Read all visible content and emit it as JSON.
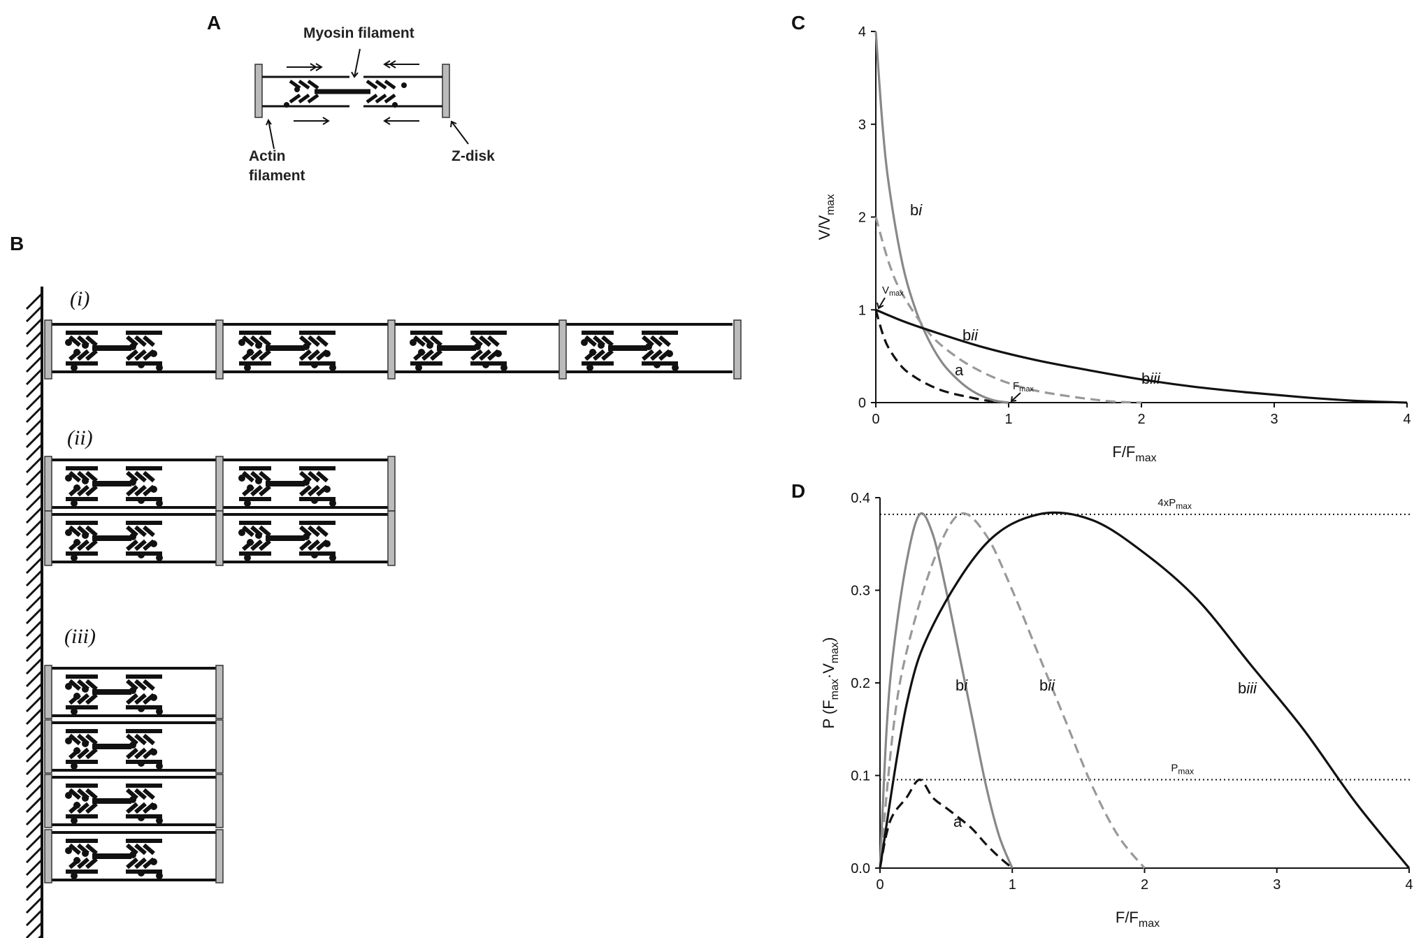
{
  "panels": {
    "A": {
      "letter": "A",
      "myosin_label": "Myosin filament",
      "actin_label_line1": "Actin",
      "actin_label_line2": "filament",
      "zdisk_label": "Z-disk"
    },
    "B": {
      "letter": "B",
      "row_labels": [
        "(i)",
        "(ii)",
        "(iii)"
      ]
    }
  },
  "chart_data": [
    {
      "panel": "C",
      "type": "line",
      "xlabel": "F/F",
      "xlabel_sub": "max",
      "ylabel": "V/V",
      "ylabel_sub": "max",
      "xlim": [
        0,
        4
      ],
      "ylim": [
        0,
        4
      ],
      "xticks": [
        "0",
        "1",
        "2",
        "3",
        "4"
      ],
      "yticks": [
        "0",
        "1",
        "2",
        "3",
        "4"
      ],
      "series": [
        {
          "name": "a",
          "label_main": "a",
          "label_italic": "",
          "color": "#111111",
          "dashed": true,
          "x": [
            0,
            0.05,
            0.1,
            0.2,
            0.3,
            0.4,
            0.5,
            0.6,
            0.7,
            0.8,
            0.9,
            1.0
          ],
          "y": [
            1.0,
            0.75,
            0.58,
            0.38,
            0.27,
            0.19,
            0.13,
            0.09,
            0.06,
            0.03,
            0.01,
            0
          ]
        },
        {
          "name": "bi",
          "label_main": "b",
          "label_italic": "i",
          "color": "#888888",
          "dashed": false,
          "x": [
            0,
            0.05,
            0.1,
            0.2,
            0.3,
            0.4,
            0.5,
            0.6,
            0.7,
            0.8,
            0.9,
            1.0
          ],
          "y": [
            4.0,
            3.0,
            2.33,
            1.5,
            1.0,
            0.67,
            0.43,
            0.27,
            0.15,
            0.07,
            0.02,
            0
          ]
        },
        {
          "name": "bii",
          "label_main": "b",
          "label_italic": "ii",
          "color": "#999999",
          "dashed": true,
          "x": [
            0,
            0.1,
            0.2,
            0.4,
            0.6,
            0.8,
            1.0,
            1.2,
            1.4,
            1.6,
            1.8,
            2.0
          ],
          "y": [
            2.0,
            1.5,
            1.17,
            0.75,
            0.5,
            0.33,
            0.21,
            0.13,
            0.08,
            0.04,
            0.01,
            0
          ]
        },
        {
          "name": "biii",
          "label_main": "b",
          "label_italic": "iii",
          "color": "#111111",
          "dashed": false,
          "x": [
            0,
            0.2,
            0.4,
            0.8,
            1.2,
            1.6,
            2.0,
            2.4,
            2.8,
            3.2,
            3.6,
            4.0
          ],
          "y": [
            1.0,
            0.88,
            0.78,
            0.6,
            0.46,
            0.35,
            0.25,
            0.17,
            0.11,
            0.06,
            0.02,
            0
          ]
        }
      ],
      "annotations": [
        {
          "text": "V",
          "sub": "max",
          "x": 0,
          "y": 1
        },
        {
          "text": "F",
          "sub": "max",
          "x": 1,
          "y": 0
        }
      ]
    },
    {
      "panel": "D",
      "type": "line",
      "xlabel": "F/F",
      "xlabel_sub": "max",
      "ylabel": "P (F",
      "ylabel_sub1": "max",
      "ylabel_mid": "·V",
      "ylabel_sub2": "max",
      "ylabel_end": ")",
      "xlim": [
        0,
        4
      ],
      "ylim": [
        0,
        0.4
      ],
      "xticks": [
        "0",
        "1",
        "2",
        "3",
        "4"
      ],
      "yticks": [
        "0.0",
        "0.1",
        "0.2",
        "0.3",
        "0.4"
      ],
      "series": [
        {
          "name": "a",
          "label_main": "a",
          "label_italic": "",
          "color": "#111111",
          "dashed": true,
          "x": [
            0,
            0.05,
            0.1,
            0.2,
            0.3,
            0.4,
            0.5,
            0.6,
            0.7,
            0.8,
            0.9,
            1.0
          ],
          "y": [
            0,
            0.0375,
            0.058,
            0.076,
            0.0955,
            0.076,
            0.065,
            0.054,
            0.042,
            0.026,
            0.012,
            0
          ]
        },
        {
          "name": "bi",
          "label_main": "b",
          "label_italic": "i",
          "color": "#888888",
          "dashed": false,
          "x": [
            0,
            0.05,
            0.1,
            0.2,
            0.3,
            0.4,
            0.5,
            0.6,
            0.7,
            0.8,
            0.9,
            1.0
          ],
          "y": [
            0,
            0.15,
            0.233,
            0.33,
            0.382,
            0.36,
            0.3,
            0.23,
            0.16,
            0.09,
            0.035,
            0
          ]
        },
        {
          "name": "bii",
          "label_main": "b",
          "label_italic": "ii",
          "color": "#999999",
          "dashed": true,
          "x": [
            0,
            0.1,
            0.2,
            0.4,
            0.6,
            0.8,
            1.0,
            1.2,
            1.4,
            1.6,
            1.8,
            2.0
          ],
          "y": [
            0,
            0.15,
            0.233,
            0.33,
            0.382,
            0.36,
            0.3,
            0.23,
            0.16,
            0.09,
            0.035,
            0
          ]
        },
        {
          "name": "biii",
          "label_main": "b",
          "label_italic": "iii",
          "color": "#111111",
          "dashed": false,
          "x": [
            0,
            0.2,
            0.4,
            0.8,
            1.2,
            1.6,
            2.0,
            2.4,
            2.8,
            3.2,
            3.6,
            4.0
          ],
          "y": [
            0,
            0.176,
            0.262,
            0.35,
            0.382,
            0.376,
            0.34,
            0.29,
            0.22,
            0.15,
            0.07,
            0
          ]
        }
      ],
      "reference_lines": [
        {
          "y": 0.382,
          "label": "4xP",
          "label_sub": "max"
        },
        {
          "y": 0.0955,
          "label": "P",
          "label_sub": "max"
        }
      ]
    }
  ]
}
